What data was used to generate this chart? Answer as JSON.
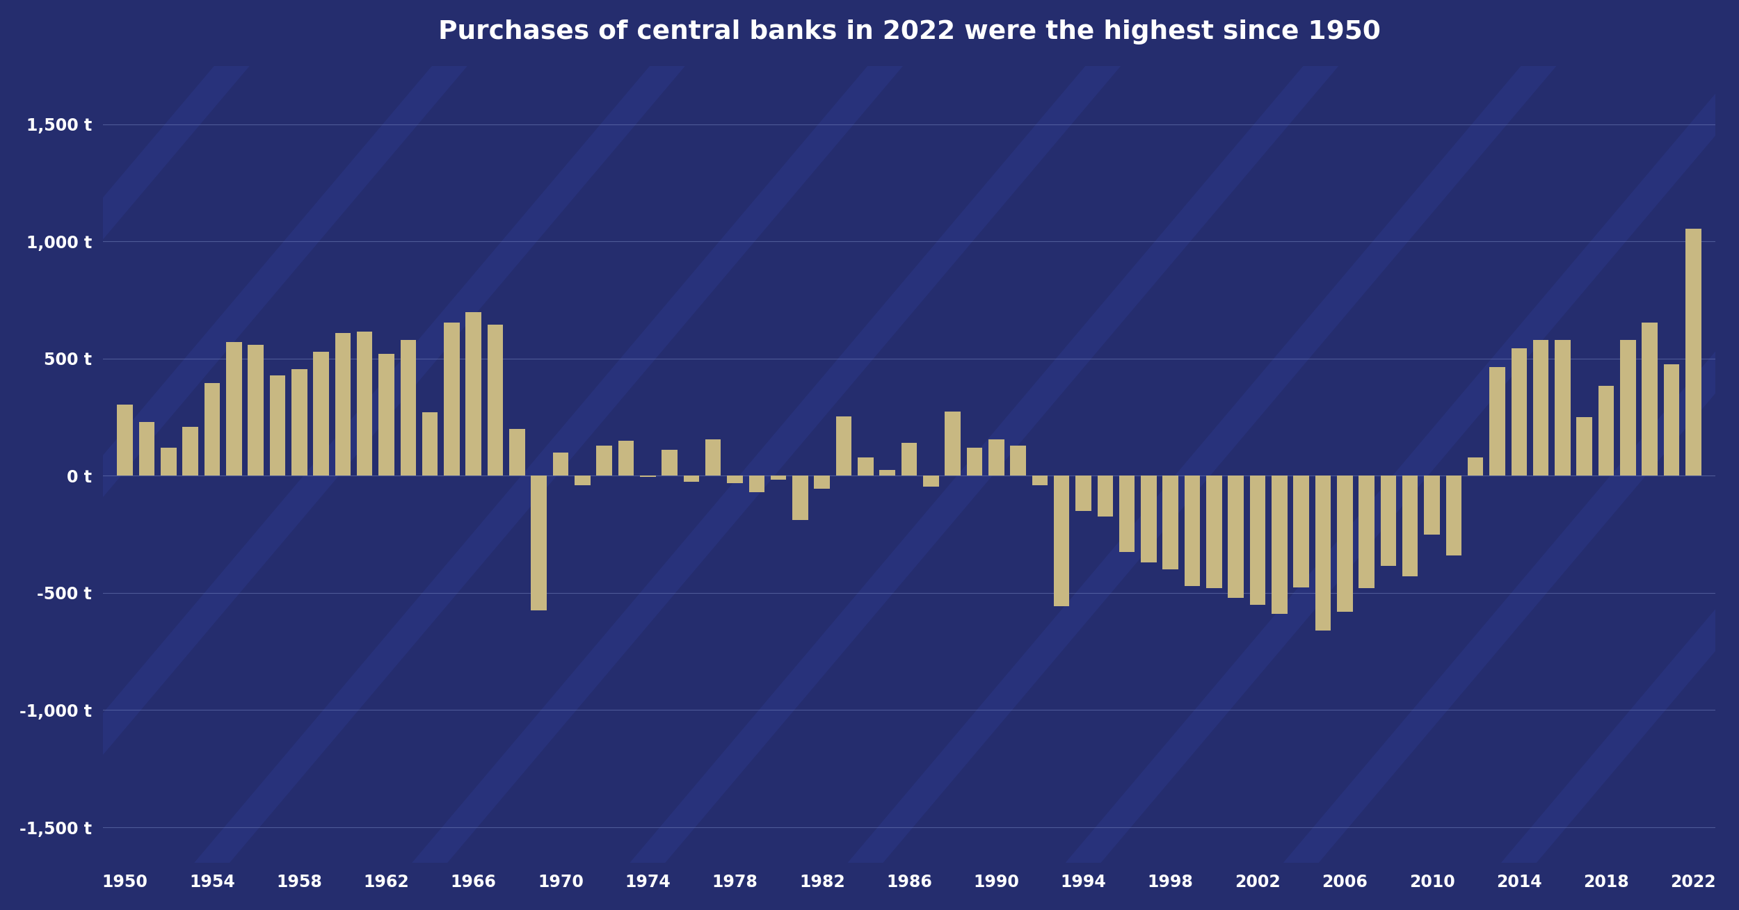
{
  "title": "Purchases of central banks in 2022 were the highest since 1950",
  "background_color": "#252d6e",
  "bar_color": "#c8b882",
  "grid_color": "#7080bb",
  "text_color": "#ffffff",
  "ylim": [
    -1650,
    1750
  ],
  "yticks": [
    -1500,
    -1000,
    -500,
    0,
    500,
    1000,
    1500
  ],
  "ytick_labels": [
    "-1,500 t",
    "-1,000 t",
    "-500 t",
    "0 t",
    "500 t",
    "1,000 t",
    "1,500 t"
  ],
  "years": [
    1950,
    1951,
    1952,
    1953,
    1954,
    1955,
    1956,
    1957,
    1958,
    1959,
    1960,
    1961,
    1962,
    1963,
    1964,
    1965,
    1966,
    1967,
    1968,
    1969,
    1970,
    1971,
    1972,
    1973,
    1974,
    1975,
    1976,
    1977,
    1978,
    1979,
    1980,
    1981,
    1982,
    1983,
    1984,
    1985,
    1986,
    1987,
    1988,
    1989,
    1990,
    1991,
    1992,
    1993,
    1994,
    1995,
    1996,
    1997,
    1998,
    1999,
    2000,
    2001,
    2002,
    2003,
    2004,
    2005,
    2006,
    2007,
    2008,
    2009,
    2010,
    2011,
    2012,
    2013,
    2014,
    2015,
    2016,
    2017,
    2018,
    2019,
    2020,
    2021,
    2022
  ],
  "values": [
    305,
    230,
    120,
    210,
    395,
    570,
    560,
    430,
    455,
    530,
    610,
    615,
    520,
    580,
    270,
    655,
    700,
    645,
    200,
    -575,
    100,
    -40,
    130,
    150,
    -5,
    110,
    -25,
    155,
    -30,
    -70,
    -15,
    -190,
    -55,
    255,
    80,
    25,
    140,
    -45,
    275,
    120,
    155,
    130,
    -40,
    -555,
    -150,
    -175,
    -325,
    -370,
    -400,
    -470,
    -480,
    -520,
    -550,
    -590,
    -475,
    -660,
    -580,
    -480,
    -385,
    -430,
    -250,
    -340,
    80,
    465,
    545,
    580,
    580,
    250,
    385,
    580,
    655,
    475,
    1055
  ],
  "xtick_years": [
    1950,
    1954,
    1958,
    1962,
    1966,
    1970,
    1974,
    1978,
    1982,
    1986,
    1990,
    1994,
    1998,
    2002,
    2006,
    2010,
    2014,
    2018,
    2022
  ],
  "stripe_color": "#3040a0",
  "stripe_alpha": 0.28,
  "stripe_linewidth": 28,
  "title_fontsize": 27,
  "tick_fontsize": 17
}
